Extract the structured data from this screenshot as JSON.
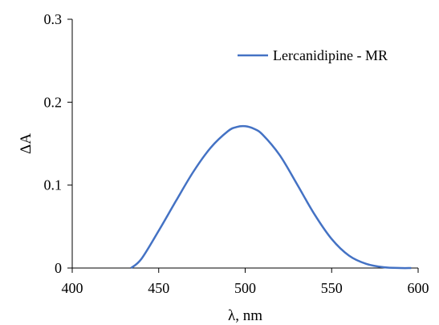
{
  "chart_data": {
    "type": "line",
    "title": "",
    "xlabel": "λ, nm",
    "ylabel": "ΔA",
    "xlim": [
      400,
      600
    ],
    "ylim": [
      0,
      0.3
    ],
    "xticks": [
      {
        "value": 400,
        "label": "400"
      },
      {
        "value": 450,
        "label": "450"
      },
      {
        "value": 500,
        "label": "500"
      },
      {
        "value": 550,
        "label": "550"
      },
      {
        "value": 600,
        "label": "600"
      }
    ],
    "yticks": [
      {
        "value": 0,
        "label": "0"
      },
      {
        "value": 0.1,
        "label": "0.1"
      },
      {
        "value": 0.2,
        "label": "0.2"
      },
      {
        "value": 0.3,
        "label": "0.3"
      }
    ],
    "grid": false,
    "legend_position": "top-right",
    "series": [
      {
        "name": "Lercanidipine - MR",
        "color": "#4472C4",
        "x": [
          434,
          440,
          450,
          460,
          470,
          480,
          490,
          495,
          500,
          505,
          510,
          520,
          530,
          540,
          550,
          560,
          570,
          580,
          590,
          596
        ],
        "y": [
          0.0,
          0.011,
          0.045,
          0.081,
          0.116,
          0.145,
          0.165,
          0.17,
          0.171,
          0.168,
          0.161,
          0.136,
          0.101,
          0.065,
          0.035,
          0.015,
          0.005,
          0.001,
          0.0,
          0.0
        ]
      }
    ]
  }
}
